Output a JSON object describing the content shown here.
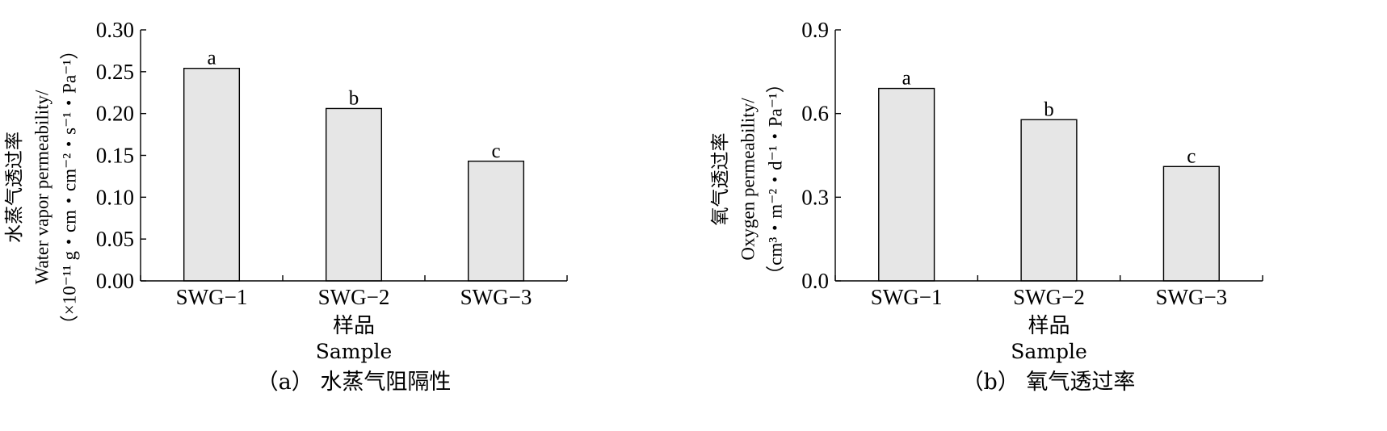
{
  "chart_data": [
    {
      "type": "bar",
      "caption": "（a） 水蒸气阻隔性",
      "categories": [
        "SWG−1",
        "SWG−2",
        "SWG−3"
      ],
      "values": [
        0.254,
        0.206,
        0.143
      ],
      "significance": [
        "a",
        "b",
        "c"
      ],
      "xlabel_cn": "样品",
      "xlabel_en": "Sample",
      "ylabel_lines": [
        "水蒸气透过率",
        "Water vapor permeability/",
        "（×10⁻¹¹ g・cm・cm⁻²・s⁻¹・Pa⁻¹）"
      ],
      "ylim": [
        0,
        0.3
      ],
      "yticks": [
        "0.00",
        "0.05",
        "0.10",
        "0.15",
        "0.20",
        "0.25",
        "0.30"
      ],
      "grid": false,
      "legend": "none"
    },
    {
      "type": "bar",
      "caption": "（b） 氧气透过率",
      "categories": [
        "SWG−1",
        "SWG−2",
        "SWG−3"
      ],
      "values": [
        0.69,
        0.578,
        0.41
      ],
      "significance": [
        "a",
        "b",
        "c"
      ],
      "xlabel_cn": "样品",
      "xlabel_en": "Sample",
      "ylabel_lines": [
        "氧气透过率",
        "Oxygen permeability/",
        "（cm³・m⁻²・d⁻¹・Pa⁻¹）"
      ],
      "ylim": [
        0,
        0.9
      ],
      "yticks": [
        "0.0",
        "0.3",
        "0.6",
        "0.9"
      ],
      "grid": false,
      "legend": "none"
    }
  ]
}
